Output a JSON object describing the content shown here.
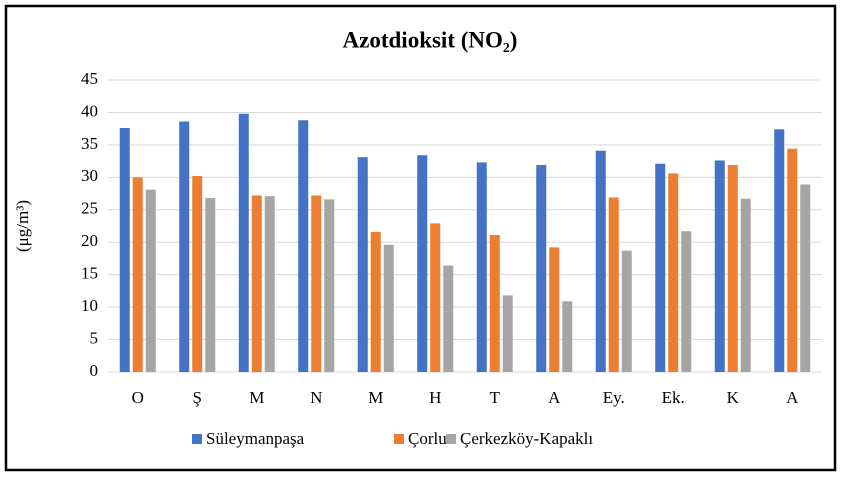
{
  "chart_data": {
    "type": "bar",
    "title": "Azotdioksit  (NO₂)",
    "y_label": "(μg/m³)",
    "categories": [
      "O",
      "Ş",
      "M",
      "N",
      "M",
      "H",
      "T",
      "A",
      "Ey.",
      "Ek.",
      "K",
      "A"
    ],
    "series": [
      {
        "name": "Süleymanpaşa",
        "color": "#4472c4",
        "values": [
          37.6,
          38.6,
          39.8,
          38.8,
          33.1,
          33.4,
          32.3,
          31.9,
          34.1,
          32.1,
          32.6,
          37.4
        ]
      },
      {
        "name": "Çorlu",
        "color": "#ed7d31",
        "values": [
          30.0,
          30.2,
          27.2,
          27.2,
          21.6,
          22.9,
          21.1,
          19.2,
          26.9,
          30.6,
          31.9,
          34.4
        ]
      },
      {
        "name": "Çerkezköy-Kapaklı",
        "color": "#a5a5a5",
        "values": [
          28.1,
          26.8,
          27.1,
          26.6,
          19.6,
          16.4,
          11.8,
          10.9,
          18.7,
          21.7,
          26.7,
          28.9
        ]
      }
    ],
    "ylim": [
      0,
      45
    ],
    "yticks": [
      0,
      5,
      10,
      15,
      20,
      25,
      30,
      35,
      40,
      45
    ],
    "grid": true,
    "legend": "bottom"
  }
}
